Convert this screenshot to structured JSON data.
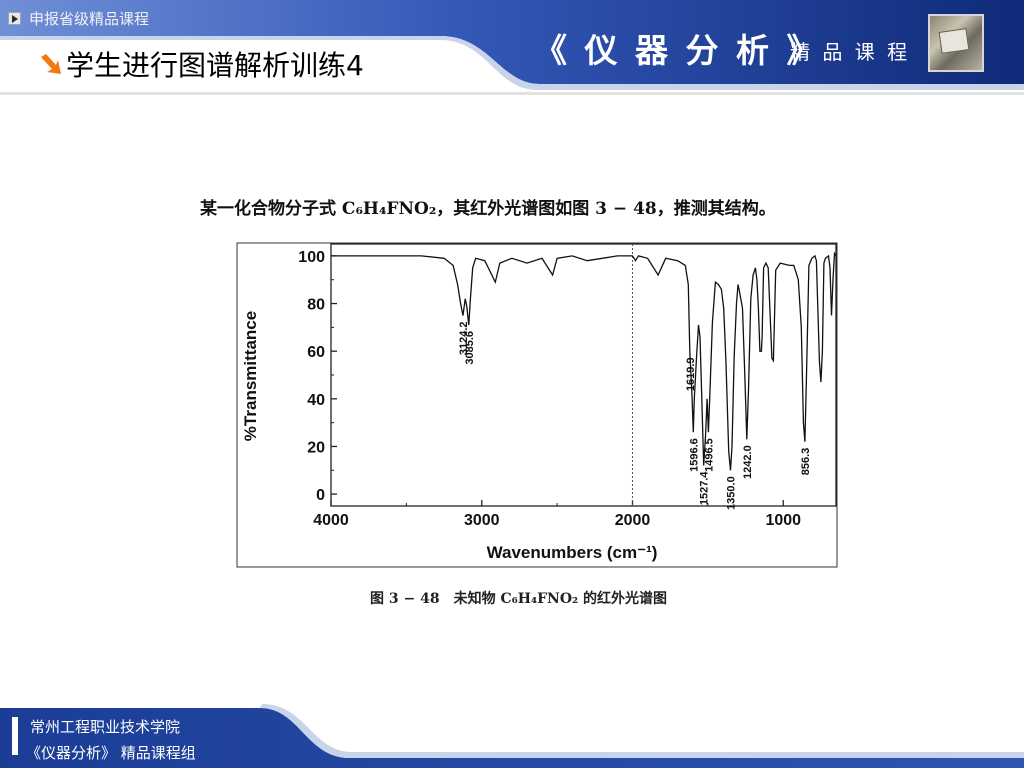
{
  "header": {
    "tagline": "申报省级精品课程",
    "slide_title": "学生进行图谱解析训练4",
    "course_title": "《 仪 器 分 析 》",
    "course_subtitle": "精 品 课 程"
  },
  "question": "某一化合物分子式 C₆H₄FNO₂，其红外光谱图如图 3 − 48，推测其结构。",
  "caption": "图 3 − 48　未知物 C₆H₄FNO₂ 的红外光谱图",
  "footer": {
    "school": "常州工程职业技术学院",
    "group": "《仪器分析》 精品课程组"
  },
  "colors": {
    "header_blue": "#1d3f9a",
    "header_light": "#6f8fd6",
    "title_text": "#000000",
    "arrow": "#f07a10"
  },
  "chart_data": {
    "type": "line",
    "title": "",
    "xlabel": "Wavenumbers (cm⁻¹)",
    "ylabel": "%Transmittance",
    "xlim": [
      4000,
      650
    ],
    "ylim": [
      -5,
      105
    ],
    "x_reversed": true,
    "xticks": [
      4000,
      3000,
      2000,
      1000
    ],
    "yticks": [
      0,
      20,
      40,
      60,
      80,
      100
    ],
    "reference_line_x": 2000,
    "series": [
      {
        "name": "",
        "points": [
          [
            4000,
            100
          ],
          [
            3700,
            100
          ],
          [
            3400,
            100
          ],
          [
            3250,
            99
          ],
          [
            3190,
            96
          ],
          [
            3160,
            88
          ],
          [
            3140,
            80
          ],
          [
            3124.2,
            75
          ],
          [
            3110,
            82
          ],
          [
            3100,
            79
          ],
          [
            3085.6,
            71
          ],
          [
            3075,
            82
          ],
          [
            3060,
            95
          ],
          [
            3040,
            99
          ],
          [
            2980,
            98
          ],
          [
            2910,
            89
          ],
          [
            2880,
            97
          ],
          [
            2800,
            99
          ],
          [
            2700,
            97
          ],
          [
            2600,
            99
          ],
          [
            2530,
            92
          ],
          [
            2500,
            99
          ],
          [
            2400,
            100
          ],
          [
            2300,
            98
          ],
          [
            2200,
            99
          ],
          [
            2100,
            100
          ],
          [
            2000,
            100
          ],
          [
            1980,
            98
          ],
          [
            1960,
            100
          ],
          [
            1900,
            99
          ],
          [
            1830,
            92
          ],
          [
            1780,
            99
          ],
          [
            1700,
            98
          ],
          [
            1650,
            96
          ],
          [
            1630,
            88
          ],
          [
            1620,
            60
          ],
          [
            1608,
            45
          ],
          [
            1603,
            38
          ],
          [
            1596.6,
            26
          ],
          [
            1590,
            40
          ],
          [
            1575,
            58
          ],
          [
            1562,
            71
          ],
          [
            1552,
            66
          ],
          [
            1540,
            40
          ],
          [
            1527.4,
            12
          ],
          [
            1515,
            25
          ],
          [
            1505,
            40
          ],
          [
            1496.5,
            26
          ],
          [
            1488,
            40
          ],
          [
            1470,
            72
          ],
          [
            1450,
            89
          ],
          [
            1430,
            88
          ],
          [
            1410,
            86
          ],
          [
            1395,
            78
          ],
          [
            1380,
            55
          ],
          [
            1362,
            18
          ],
          [
            1350,
            10
          ],
          [
            1340,
            20
          ],
          [
            1325,
            58
          ],
          [
            1310,
            80
          ],
          [
            1300,
            88
          ],
          [
            1290,
            85
          ],
          [
            1270,
            78
          ],
          [
            1255,
            50
          ],
          [
            1242,
            23
          ],
          [
            1230,
            45
          ],
          [
            1215,
            82
          ],
          [
            1200,
            92
          ],
          [
            1185,
            95
          ],
          [
            1175,
            90
          ],
          [
            1165,
            78
          ],
          [
            1155,
            60
          ],
          [
            1145,
            60
          ],
          [
            1140,
            66
          ],
          [
            1130,
            95
          ],
          [
            1115,
            97
          ],
          [
            1100,
            95
          ],
          [
            1075,
            57
          ],
          [
            1065,
            56
          ],
          [
            1050,
            94
          ],
          [
            1020,
            97
          ],
          [
            960,
            96
          ],
          [
            930,
            96
          ],
          [
            900,
            90
          ],
          [
            880,
            70
          ],
          [
            866,
            30
          ],
          [
            856.3,
            22
          ],
          [
            846,
            50
          ],
          [
            830,
            96
          ],
          [
            810,
            99
          ],
          [
            790,
            100
          ],
          [
            780,
            98
          ],
          [
            760,
            56
          ],
          [
            750,
            47
          ],
          [
            740,
            60
          ],
          [
            730,
            97
          ],
          [
            720,
            99
          ],
          [
            700,
            100
          ],
          [
            690,
            95
          ],
          [
            680,
            75
          ],
          [
            670,
            90
          ],
          [
            660,
            101
          ],
          [
            650,
            100
          ]
        ]
      }
    ],
    "peak_labels": [
      {
        "x": 3124.2,
        "label": "3124.2"
      },
      {
        "x": 3085.6,
        "label": "3085.6"
      },
      {
        "x": 1596.6,
        "label": "1596.6"
      },
      {
        "x": 1619.9,
        "label": "1619.9"
      },
      {
        "x": 1527.4,
        "label": "1527.4"
      },
      {
        "x": 1496.5,
        "label": "1496.5"
      },
      {
        "x": 1350.0,
        "label": "1350.0"
      },
      {
        "x": 1242.0,
        "label": "1242.0"
      },
      {
        "x": 856.3,
        "label": "856.3"
      }
    ]
  }
}
